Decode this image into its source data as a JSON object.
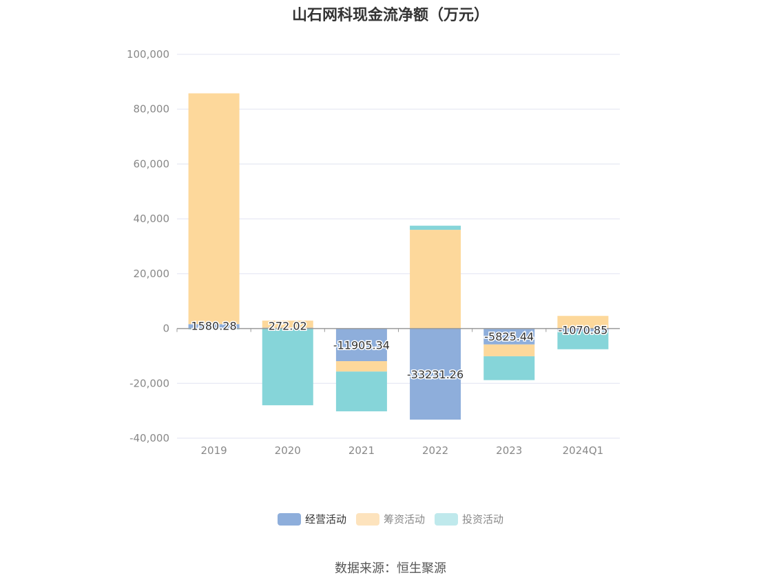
{
  "title": "山石网科现金流净额（万元）",
  "source": "数据来源：恒生聚源",
  "legend": {
    "items": [
      {
        "label": "经营活动",
        "color": "#8eaedb",
        "text_color": "#333333"
      },
      {
        "label": "筹资活动",
        "color": "#fde3bd",
        "text_color": "#888888"
      },
      {
        "label": "投资活动",
        "color": "#bfe9ec",
        "text_color": "#888888"
      }
    ]
  },
  "chart_data": {
    "type": "bar",
    "stacked": true,
    "categories": [
      "2019",
      "2020",
      "2021",
      "2022",
      "2023",
      "2024Q1"
    ],
    "ylim": [
      -40000,
      100000
    ],
    "yticks": [
      100000,
      80000,
      60000,
      40000,
      20000,
      0,
      -20000,
      -40000
    ],
    "ytick_labels": [
      "100,000",
      "80,000",
      "60,000",
      "40,000",
      "20,000",
      "0",
      "-20,000",
      "-40,000"
    ],
    "grid": true,
    "legend_position": "bottom",
    "series": [
      {
        "name": "经营活动",
        "color": "#8eaedb",
        "values": [
          1580.28,
          272.02,
          -11905.34,
          -33231.26,
          -5825.44,
          -1070.85
        ]
      },
      {
        "name": "筹资活动",
        "color": "#fdd89b",
        "values": [
          84200,
          2600,
          -3800,
          36000,
          -4300,
          4600
        ]
      },
      {
        "name": "投资活动",
        "color": "#86d5d9",
        "values": [
          -300,
          -28000,
          -14500,
          1500,
          -8700,
          -6500
        ]
      }
    ],
    "data_labels": [
      "1580.28",
      "272.02",
      "-11905.34",
      "-33231.26",
      "-5825.44",
      "-1070.85"
    ]
  }
}
